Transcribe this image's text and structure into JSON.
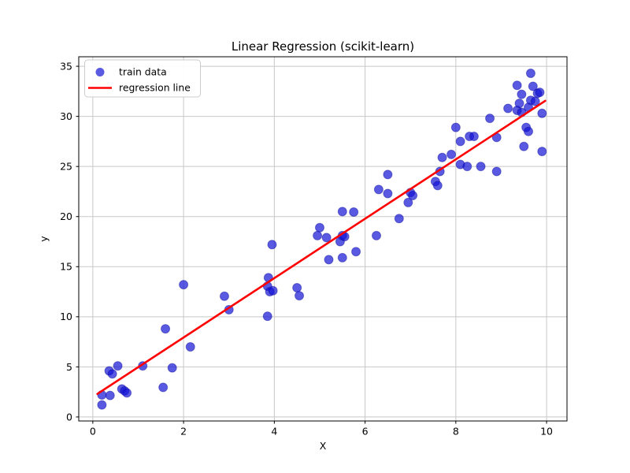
{
  "figure": {
    "background": "#ffffff"
  },
  "chart_data": {
    "type": "scatter",
    "title": "Linear Regression (scikit-learn)",
    "xlabel": "X",
    "ylabel": "y",
    "xlim": [
      -0.31,
      10.45
    ],
    "ylim": [
      -0.4,
      35.95
    ],
    "xticks": [
      0,
      2,
      4,
      6,
      8,
      10
    ],
    "yticks": [
      0,
      5,
      10,
      15,
      20,
      25,
      30,
      35
    ],
    "grid": true,
    "grid_color": "#c8c8c8",
    "axes_color": "#000000",
    "legend": {
      "position": "upper-left",
      "entries": [
        {
          "label": "train data",
          "marker": "circle",
          "color": "#1212d6"
        },
        {
          "label": "regression line",
          "marker": "line",
          "color": "#ff0000"
        }
      ]
    },
    "series": [
      {
        "name": "train data",
        "type": "scatter",
        "color": "#1212d6",
        "edge_color": "#14149e",
        "opacity": 0.7,
        "marker_radius": 5.5,
        "points": [
          [
            0.2,
            1.2
          ],
          [
            0.2,
            2.2
          ],
          [
            0.38,
            2.15
          ],
          [
            0.36,
            4.6
          ],
          [
            0.43,
            4.3
          ],
          [
            0.55,
            5.1
          ],
          [
            0.64,
            2.8
          ],
          [
            0.7,
            2.6
          ],
          [
            0.75,
            2.4
          ],
          [
            1.1,
            5.1
          ],
          [
            1.55,
            2.95
          ],
          [
            1.6,
            8.8
          ],
          [
            1.75,
            4.9
          ],
          [
            2.0,
            13.2
          ],
          [
            2.15,
            7.0
          ],
          [
            2.9,
            12.05
          ],
          [
            3.0,
            10.7
          ],
          [
            3.85,
            10.05
          ],
          [
            3.87,
            13.9
          ],
          [
            3.85,
            13.05
          ],
          [
            3.9,
            12.5
          ],
          [
            3.97,
            12.6
          ],
          [
            3.95,
            17.2
          ],
          [
            4.5,
            12.9
          ],
          [
            4.55,
            12.1
          ],
          [
            4.95,
            18.1
          ],
          [
            5.0,
            18.9
          ],
          [
            5.15,
            17.9
          ],
          [
            5.2,
            15.7
          ],
          [
            5.45,
            17.5
          ],
          [
            5.5,
            18.1
          ],
          [
            5.55,
            18.0
          ],
          [
            5.5,
            15.9
          ],
          [
            5.5,
            20.5
          ],
          [
            5.75,
            20.45
          ],
          [
            5.8,
            16.5
          ],
          [
            6.25,
            18.1
          ],
          [
            6.3,
            22.7
          ],
          [
            6.5,
            22.3
          ],
          [
            6.5,
            24.2
          ],
          [
            6.75,
            19.8
          ],
          [
            6.95,
            21.4
          ],
          [
            7.0,
            22.4
          ],
          [
            7.05,
            22.1
          ],
          [
            7.55,
            23.5
          ],
          [
            7.6,
            23.1
          ],
          [
            7.65,
            24.5
          ],
          [
            7.7,
            25.9
          ],
          [
            7.9,
            26.2
          ],
          [
            8.0,
            28.9
          ],
          [
            8.1,
            27.5
          ],
          [
            8.1,
            25.2
          ],
          [
            8.25,
            25.0
          ],
          [
            8.3,
            28.0
          ],
          [
            8.4,
            28.0
          ],
          [
            8.55,
            25.0
          ],
          [
            8.75,
            29.8
          ],
          [
            8.9,
            27.9
          ],
          [
            8.9,
            24.5
          ],
          [
            9.15,
            30.8
          ],
          [
            9.35,
            33.1
          ],
          [
            9.35,
            30.6
          ],
          [
            9.4,
            31.3
          ],
          [
            9.45,
            32.2
          ],
          [
            9.45,
            30.4
          ],
          [
            9.5,
            27.0
          ],
          [
            9.55,
            28.9
          ],
          [
            9.6,
            28.5
          ],
          [
            9.6,
            30.9
          ],
          [
            9.65,
            34.3
          ],
          [
            9.65,
            31.6
          ],
          [
            9.7,
            33.0
          ],
          [
            9.75,
            31.5
          ],
          [
            9.8,
            32.3
          ],
          [
            9.85,
            32.4
          ],
          [
            9.9,
            30.3
          ],
          [
            9.9,
            26.5
          ]
        ]
      },
      {
        "name": "regression line",
        "type": "line",
        "color": "#ff0000",
        "width": 2.6,
        "points": [
          [
            0.1,
            2.3
          ],
          [
            9.97,
            31.55
          ]
        ]
      }
    ]
  }
}
